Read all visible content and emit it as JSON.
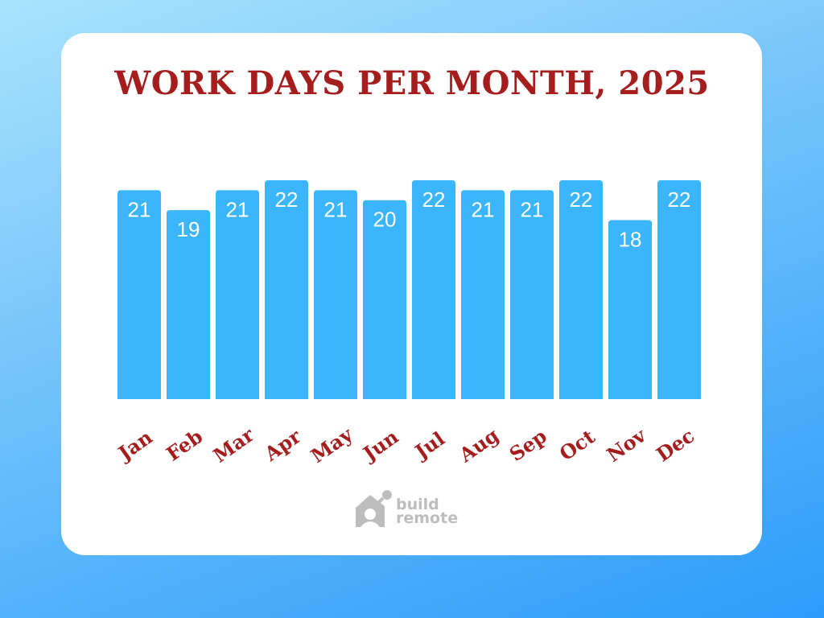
{
  "chart_data": {
    "type": "bar",
    "title": "WORK DAYS PER MONTH, 2025",
    "categories": [
      "Jan",
      "Feb",
      "Mar",
      "Apr",
      "May",
      "Jun",
      "Jul",
      "Aug",
      "Sep",
      "Oct",
      "Nov",
      "Dec"
    ],
    "values": [
      21,
      19,
      21,
      22,
      21,
      20,
      22,
      21,
      21,
      22,
      18,
      22
    ],
    "xlabel": "",
    "ylabel": "",
    "ylim": [
      0,
      22
    ],
    "grid": false,
    "bar_color": "#3bb6fd",
    "label_color": "#a51d1d"
  },
  "logo": {
    "line1": "build",
    "line2": "remote"
  }
}
